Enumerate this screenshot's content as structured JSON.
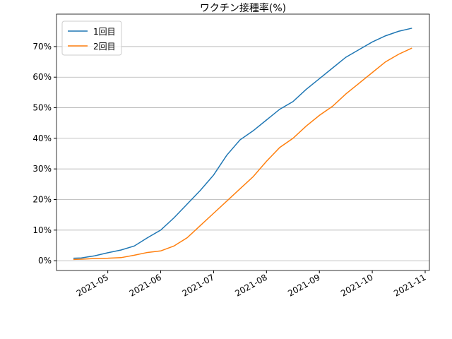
{
  "chart_data": {
    "type": "line",
    "title": "ワクチン接種率(%)",
    "x": [
      4.35,
      4.5,
      4.75,
      5.0,
      5.25,
      5.5,
      5.75,
      6.0,
      6.25,
      6.5,
      6.75,
      7.0,
      7.25,
      7.5,
      7.75,
      8.0,
      8.25,
      8.5,
      8.75,
      9.0,
      9.25,
      9.5,
      9.75,
      10.0,
      10.25,
      10.5,
      10.75
    ],
    "series": [
      {
        "name": "1回目",
        "color": "#1f77b4",
        "values": [
          0.8,
          0.9,
          1.6,
          2.6,
          3.5,
          4.8,
          7.5,
          10,
          14,
          18.5,
          23,
          28,
          34.5,
          39.5,
          42.5,
          46,
          49.5,
          52,
          56,
          59.5,
          63,
          66.5,
          69,
          71.5,
          73.5,
          75,
          76
        ]
      },
      {
        "name": "2回目",
        "color": "#ff7f0e",
        "values": [
          0.4,
          0.5,
          0.7,
          0.8,
          1.0,
          1.8,
          2.7,
          3.2,
          4.8,
          7.5,
          11.5,
          15.5,
          19.5,
          23.5,
          27.5,
          32.5,
          37,
          40,
          44,
          47.5,
          50.5,
          54.5,
          58,
          61.5,
          65,
          67.5,
          69.5
        ]
      }
    ],
    "xlim": [
      4.03,
      11.08
    ],
    "xticks": [
      {
        "value": 5,
        "label": "2021-05"
      },
      {
        "value": 6,
        "label": "2021-06"
      },
      {
        "value": 7,
        "label": "2021-07"
      },
      {
        "value": 8,
        "label": "2021-08"
      },
      {
        "value": 9,
        "label": "2021-09"
      },
      {
        "value": 10,
        "label": "2021-10"
      },
      {
        "value": 11,
        "label": "2021-11"
      }
    ],
    "ylim": [
      -3.2,
      80.6
    ],
    "yticks": [
      {
        "value": 0,
        "label": "0%"
      },
      {
        "value": 10,
        "label": "10%"
      },
      {
        "value": 20,
        "label": "20%"
      },
      {
        "value": 30,
        "label": "30%"
      },
      {
        "value": 40,
        "label": "40%"
      },
      {
        "value": 50,
        "label": "50%"
      },
      {
        "value": 60,
        "label": "60%"
      },
      {
        "value": 70,
        "label": "70%"
      }
    ],
    "grid": "y",
    "legend": "upper left"
  }
}
